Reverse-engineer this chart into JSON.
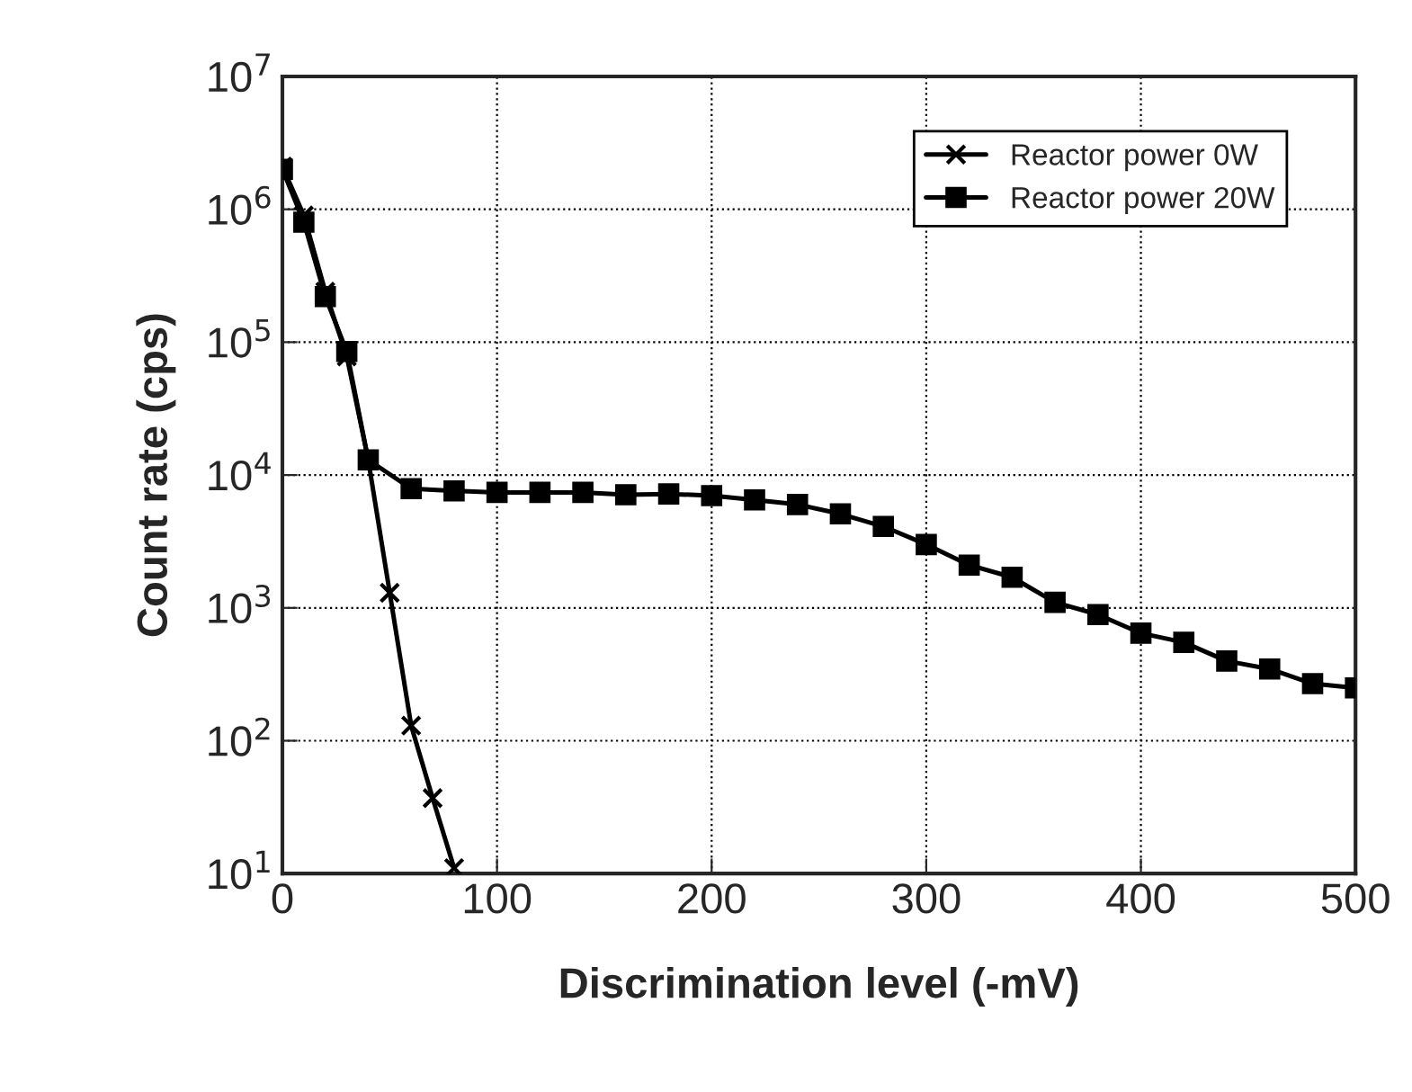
{
  "chart_data": {
    "type": "line",
    "xlabel": "Discrimination level (-mV)",
    "ylabel": "Count rate (cps)",
    "log": "y",
    "xlim": [
      0,
      500
    ],
    "xticks": [
      0,
      100,
      200,
      300,
      400,
      500
    ],
    "ylim": [
      10,
      10000000
    ],
    "yticks": [
      {
        "value": 10,
        "label": "10$^{1}$"
      },
      {
        "value": 100,
        "label": "10$^{2}$"
      },
      {
        "value": 1000,
        "label": "10$^{3}$"
      },
      {
        "value": 10000,
        "label": "10$^{4}$"
      },
      {
        "value": 100000,
        "label": "10$^{5}$"
      },
      {
        "value": 1000000,
        "label": "10$^{6}$"
      },
      {
        "value": 10000000,
        "label": "10$^{7}$"
      }
    ],
    "grid": true,
    "legend": "top right",
    "series": [
      {
        "name": "Reactor power 0W",
        "color": "#000000",
        "marker": "cross",
        "x": [
          0,
          10,
          20,
          30,
          40,
          50,
          60,
          70,
          80
        ],
        "values": [
          2100000,
          900000,
          240000,
          78000,
          13000,
          1300,
          130,
          37,
          11
        ]
      },
      {
        "name": "Reactor power 20W",
        "color": "#000000",
        "marker": "square",
        "x": [
          0,
          10,
          20,
          30,
          40,
          60,
          80,
          100,
          120,
          140,
          160,
          180,
          200,
          220,
          240,
          260,
          280,
          300,
          320,
          340,
          360,
          380,
          400,
          420,
          440,
          460,
          480,
          500
        ],
        "values": [
          2000000,
          800000,
          220000,
          85000,
          13000,
          7900,
          7600,
          7400,
          7400,
          7400,
          7100,
          7200,
          7000,
          6500,
          6000,
          5100,
          4100,
          3000,
          2100,
          1700,
          1100,
          890,
          645,
          550,
          398,
          347,
          269,
          250
        ]
      }
    ]
  }
}
